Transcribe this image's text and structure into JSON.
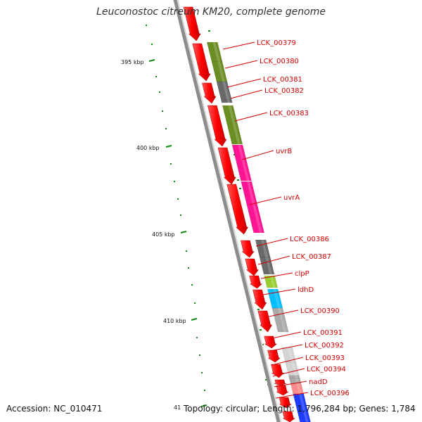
{
  "title": "Leuconostoc citreum KM20, complete genome",
  "accession": "Accession: NC_010471",
  "topology": "Topology: circular; Length: 1,796,284 bp; Genes: 1,784",
  "ticks": [
    {
      "label": "395 kbp"
    },
    {
      "label": "400 kbp"
    },
    {
      "label": "405 kbp"
    },
    {
      "label": "410 kbp"
    },
    {
      "label": "41"
    }
  ],
  "genes": [
    {
      "name": "LCK_00379",
      "color": "#6b8e23"
    },
    {
      "name": "LCK_00380",
      "color": "#6b8e23"
    },
    {
      "name": "LCK_00381",
      "color": "#696969"
    },
    {
      "name": "LCK_00382",
      "color": "#696969"
    },
    {
      "name": "LCK_00383",
      "color": "#6b8e23"
    },
    {
      "name": "uvrB",
      "color": "#ff1493"
    },
    {
      "name": "uvrA",
      "color": "#ff1493"
    },
    {
      "name": "LCK_00386",
      "color": "#696969"
    },
    {
      "name": "LCK_00387",
      "color": "#696969"
    },
    {
      "name": "clpP",
      "color": "#9acd32"
    },
    {
      "name": "ldhD",
      "color": "#00bfff"
    },
    {
      "name": "LCK_00390",
      "color": "#a9a9a9"
    },
    {
      "name": "LCK_00391",
      "color": "#d3d3d3"
    },
    {
      "name": "LCK_00392",
      "color": "#d3d3d3"
    },
    {
      "name": "LCK_00393",
      "color": "#a9a9a9"
    },
    {
      "name": "LCK_00394",
      "color": "#a9a9a9"
    },
    {
      "name": "nadD",
      "color": "#ff8c8c"
    },
    {
      "name": "LCK_00396",
      "color": "#1e3cff"
    }
  ],
  "colors": {
    "cds_strand": "#ff0000",
    "backbone": "#8c8c8c",
    "gene_label": "#d40000",
    "gc_ticks": "#118811"
  }
}
